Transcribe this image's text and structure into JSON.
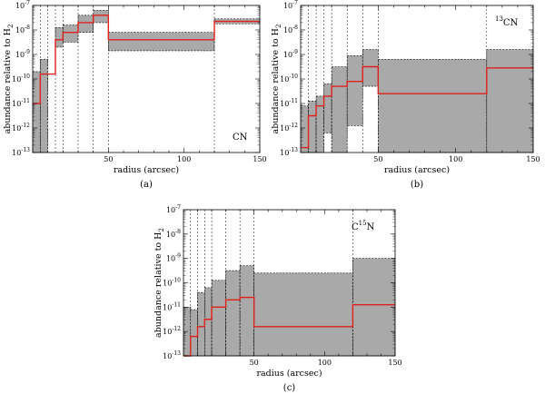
{
  "chart_data": [
    {
      "type": "area",
      "panel_label": "(a)",
      "species_label": "CN",
      "species_sup": "",
      "species_base": "CN",
      "xlabel": "radius (arcsec)",
      "ylabel": "abundance relative to H",
      "ylabel_sub": "2",
      "xlim": [
        0,
        150
      ],
      "ylim_log10": [
        -13,
        -7
      ],
      "xticks": [
        50,
        100,
        150
      ],
      "yticks_exp": [
        -13,
        -12,
        -11,
        -10,
        -9,
        -8,
        -7
      ],
      "shells": [
        {
          "x0": 0,
          "x1": 5,
          "lo_exp": -13,
          "hi_exp": -9.7,
          "best_exp": -11.0
        },
        {
          "x0": 5,
          "x1": 10,
          "lo_exp": -13,
          "hi_exp": -9.2,
          "best_exp": -9.8
        },
        {
          "x0": 10,
          "x1": 15,
          "lo_exp": -13,
          "hi_exp": -13,
          "best_exp": -9.8
        },
        {
          "x0": 15,
          "x1": 20,
          "lo_exp": -8.7,
          "hi_exp": -7.9,
          "best_exp": -8.4
        },
        {
          "x0": 20,
          "x1": 30,
          "lo_exp": -8.5,
          "hi_exp": -7.8,
          "best_exp": -8.1
        },
        {
          "x0": 30,
          "x1": 40,
          "lo_exp": -8.1,
          "hi_exp": -7.4,
          "best_exp": -7.7
        },
        {
          "x0": 40,
          "x1": 50,
          "lo_exp": -7.7,
          "hi_exp": -7.2,
          "best_exp": -7.4
        },
        {
          "x0": 50,
          "x1": 120,
          "lo_exp": -8.85,
          "hi_exp": -8.1,
          "best_exp": -8.4
        },
        {
          "x0": 120,
          "x1": 150,
          "lo_exp": -7.75,
          "hi_exp": -7.55,
          "best_exp": -7.65
        }
      ]
    },
    {
      "type": "area",
      "panel_label": "(b)",
      "species_label": "13CN",
      "species_sup": "13",
      "species_base": "CN",
      "xlabel": "radius (arcsec)",
      "ylabel": "abundance relative to H",
      "ylabel_sub": "2",
      "xlim": [
        0,
        150
      ],
      "ylim_log10": [
        -13,
        -7
      ],
      "xticks": [
        50,
        100,
        150
      ],
      "yticks_exp": [
        -13,
        -12,
        -11,
        -10,
        -9,
        -8,
        -7
      ],
      "shells": [
        {
          "x0": 0,
          "x1": 5,
          "lo_exp": -13,
          "hi_exp": -11.1,
          "best_exp": -12.8
        },
        {
          "x0": 5,
          "x1": 10,
          "lo_exp": -13,
          "hi_exp": -10.9,
          "best_exp": -11.5
        },
        {
          "x0": 10,
          "x1": 15,
          "lo_exp": -13,
          "hi_exp": -10.7,
          "best_exp": -11.1
        },
        {
          "x0": 15,
          "x1": 20,
          "lo_exp": -12.2,
          "hi_exp": -10.2,
          "best_exp": -10.7
        },
        {
          "x0": 20,
          "x1": 30,
          "lo_exp": -13,
          "hi_exp": -9.5,
          "best_exp": -10.3
        },
        {
          "x0": 30,
          "x1": 40,
          "lo_exp": -11.9,
          "hi_exp": -9.05,
          "best_exp": -10.1
        },
        {
          "x0": 40,
          "x1": 50,
          "lo_exp": -10.3,
          "hi_exp": -8.8,
          "best_exp": -9.5
        },
        {
          "x0": 50,
          "x1": 120,
          "lo_exp": -13,
          "hi_exp": -9.2,
          "best_exp": -10.6
        },
        {
          "x0": 120,
          "x1": 150,
          "lo_exp": -13,
          "hi_exp": -8.8,
          "best_exp": -9.55
        }
      ]
    },
    {
      "type": "area",
      "panel_label": "(c)",
      "species_label": "C15N",
      "species_sup": "15",
      "species_base": "C",
      "species_tail": "N",
      "xlabel": "radius (arcsec)",
      "ylabel": "abundance relative to H",
      "ylabel_sub": "2",
      "xlim": [
        0,
        150
      ],
      "ylim_log10": [
        -13,
        -7
      ],
      "xticks": [
        50,
        100,
        150
      ],
      "yticks_exp": [
        -13,
        -12,
        -11,
        -10,
        -9,
        -8,
        -7
      ],
      "shells": [
        {
          "x0": 0,
          "x1": 5,
          "lo_exp": -13,
          "hi_exp": -11.0,
          "best_exp": -13.3
        },
        {
          "x0": 5,
          "x1": 10,
          "lo_exp": -13,
          "hi_exp": -11.1,
          "best_exp": -12.2
        },
        {
          "x0": 10,
          "x1": 15,
          "lo_exp": -13,
          "hi_exp": -10.4,
          "best_exp": -11.8
        },
        {
          "x0": 15,
          "x1": 20,
          "lo_exp": -13,
          "hi_exp": -10.2,
          "best_exp": -11.5
        },
        {
          "x0": 20,
          "x1": 30,
          "lo_exp": -13,
          "hi_exp": -9.9,
          "best_exp": -11.0
        },
        {
          "x0": 30,
          "x1": 40,
          "lo_exp": -13,
          "hi_exp": -9.5,
          "best_exp": -10.7
        },
        {
          "x0": 40,
          "x1": 50,
          "lo_exp": -13,
          "hi_exp": -9.3,
          "best_exp": -10.6
        },
        {
          "x0": 50,
          "x1": 120,
          "lo_exp": -13,
          "hi_exp": -9.6,
          "best_exp": -11.8
        },
        {
          "x0": 120,
          "x1": 150,
          "lo_exp": -13,
          "hi_exp": -9.0,
          "best_exp": -10.9
        }
      ]
    }
  ]
}
